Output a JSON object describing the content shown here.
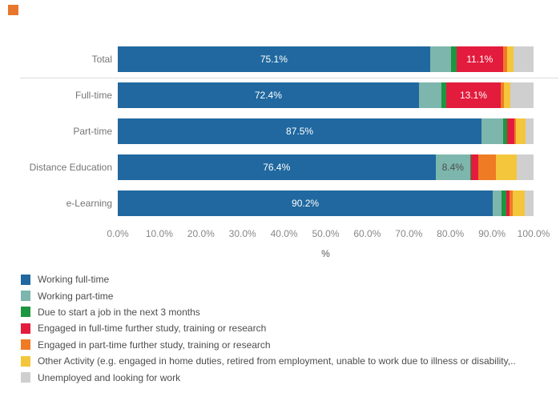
{
  "page": {
    "background": "#ffffff"
  },
  "decor": {
    "corner_square_color": "#E8762C"
  },
  "chart_data": {
    "type": "bar",
    "variant": "horizontal-stacked",
    "title": "",
    "xlabel": "%",
    "ylabel": "",
    "xlim": [
      0,
      100
    ],
    "grid": false,
    "legend_position": "bottom-left",
    "categories": [
      "Total",
      "Full-time",
      "Part-time",
      "Distance Education",
      "e-Learning"
    ],
    "x_ticks": [
      "0.0%",
      "10.0%",
      "20.0%",
      "30.0%",
      "40.0%",
      "50.0%",
      "60.0%",
      "70.0%",
      "80.0%",
      "90.0%",
      "100.0%"
    ],
    "series": [
      {
        "name": "Working full-time",
        "color": "#20689F",
        "values": [
          75.1,
          72.4,
          87.5,
          76.4,
          90.2
        ],
        "bar_labels": [
          "75.1%",
          "72.4%",
          "87.5%",
          "76.4%",
          "90.2%"
        ],
        "label_color": "#ffffff"
      },
      {
        "name": "Working part-time",
        "color": "#7CB6AC",
        "values": [
          5.0,
          5.4,
          5.2,
          8.4,
          2.0
        ],
        "bar_labels": [
          "",
          "",
          "",
          "8.4%",
          ""
        ],
        "label_color": "#4e4e4e"
      },
      {
        "name": "Due to start a job in the next 3 months",
        "color": "#1D9641",
        "values": [
          1.4,
          1.2,
          1.0,
          0.2,
          1.2
        ],
        "bar_labels": [
          "",
          "",
          "",
          "",
          ""
        ],
        "label_color": "#ffffff"
      },
      {
        "name": "Engaged in full-time further study, training or research",
        "color": "#E31B3D",
        "values": [
          11.1,
          13.1,
          1.7,
          1.7,
          0.8
        ],
        "bar_labels": [
          "11.1%",
          "13.1%",
          "",
          "",
          ""
        ],
        "label_color": "#ffffff"
      },
      {
        "name": "Engaged in part-time further study, training or research",
        "color": "#EF7B25",
        "values": [
          1.0,
          0.8,
          0.3,
          4.3,
          0.8
        ],
        "bar_labels": [
          "",
          "",
          "",
          "",
          ""
        ],
        "label_color": "#ffffff"
      },
      {
        "name": "Other Activity (e.g. engaged in home duties, retired from employment, unable to work due to illness or disability,..",
        "color": "#F4C63C",
        "values": [
          1.5,
          1.6,
          2.3,
          5.0,
          2.9
        ],
        "bar_labels": [
          "",
          "",
          "",
          "",
          ""
        ],
        "label_color": "#4e4e4e"
      },
      {
        "name": "Unemployed and looking for work",
        "color": "#D0CFD0",
        "values": [
          4.9,
          5.5,
          2.0,
          4.0,
          2.1
        ],
        "bar_labels": [
          "",
          "",
          "",
          "",
          ""
        ],
        "label_color": "#4e4e4e"
      }
    ]
  }
}
